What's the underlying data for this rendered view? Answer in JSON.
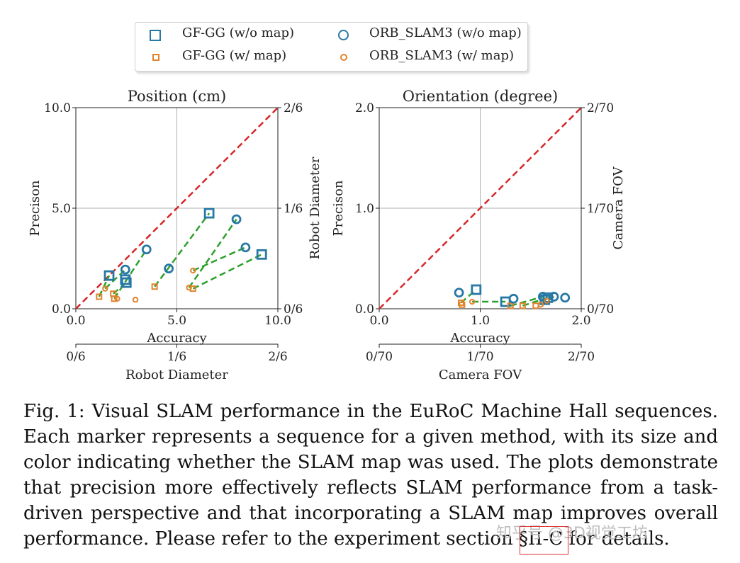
{
  "legend": {
    "items": [
      {
        "label": "GF-GG (w/o map)",
        "marker": "square",
        "size": "large",
        "color": "#2778a5"
      },
      {
        "label": "GF-GG (w/ map)",
        "marker": "square",
        "size": "small",
        "color": "#e1822c"
      },
      {
        "label": "ORB_SLAM3 (w/o map)",
        "marker": "circle",
        "size": "large",
        "color": "#2778a5"
      },
      {
        "label": "ORB_SLAM3 (w/ map)",
        "marker": "circle",
        "size": "small",
        "color": "#e1822c"
      }
    ]
  },
  "colors": {
    "blue": "#2778a5",
    "orange": "#e1822c",
    "green": "#2ca02c",
    "diag": "#d62728"
  },
  "chart_data": [
    {
      "type": "scatter",
      "title": "Position (cm)",
      "xlabel": "Accuracy",
      "ylabel": "Precison",
      "right_ylabel": "Robot Diameter",
      "secondary_xlabel": "Robot Diameter",
      "xlim": [
        0,
        10
      ],
      "ylim": [
        0,
        10
      ],
      "x_ticks": [
        "0.0",
        "5.0",
        "10.0"
      ],
      "y_ticks": [
        "0.0",
        "5.0",
        "10.0"
      ],
      "right_ticks": [
        "0/6",
        "1/6",
        "2/6"
      ],
      "secondary_x_ticks": [
        "0/6",
        "1/6",
        "2/6"
      ],
      "diagonal": true,
      "series": [
        {
          "name": "GF-GG (w/o map)",
          "points": [
            [
              1.65,
              1.65
            ],
            [
              2.5,
              1.3
            ],
            [
              2.45,
              1.45
            ],
            [
              6.6,
              4.75
            ],
            [
              9.2,
              2.7
            ]
          ]
        },
        {
          "name": "GF-GG (w/ map)",
          "points": [
            [
              1.15,
              0.6
            ],
            [
              1.85,
              0.75
            ],
            [
              1.9,
              0.5
            ],
            [
              3.9,
              1.1
            ],
            [
              5.8,
              1.0
            ]
          ]
        },
        {
          "name": "ORB_SLAM3 (w/o map)",
          "points": [
            [
              2.45,
              1.95
            ],
            [
              3.5,
              2.95
            ],
            [
              4.6,
              2.0
            ],
            [
              7.95,
              4.45
            ],
            [
              8.4,
              3.05
            ]
          ]
        },
        {
          "name": "ORB_SLAM3 (w/ map)",
          "points": [
            [
              1.45,
              1.0
            ],
            [
              2.05,
              0.5
            ],
            [
              2.95,
              0.45
            ],
            [
              5.6,
              1.05
            ],
            [
              5.8,
              1.9
            ]
          ]
        }
      ],
      "pairs": [
        [
          [
            1.15,
            0.6
          ],
          [
            1.65,
            1.65
          ]
        ],
        [
          [
            1.85,
            0.75
          ],
          [
            2.5,
            1.3
          ]
        ],
        [
          [
            1.9,
            0.5
          ],
          [
            3.5,
            2.95
          ]
        ],
        [
          [
            3.9,
            1.1
          ],
          [
            6.6,
            4.75
          ]
        ],
        [
          [
            5.6,
            1.05
          ],
          [
            7.95,
            4.45
          ]
        ],
        [
          [
            5.8,
            1.9
          ],
          [
            8.4,
            3.05
          ]
        ],
        [
          [
            5.8,
            1.0
          ],
          [
            9.2,
            2.7
          ]
        ],
        [
          [
            1.45,
            1.0
          ],
          [
            2.45,
            1.95
          ]
        ]
      ]
    },
    {
      "type": "scatter",
      "title": "Orientation (degree)",
      "xlabel": "Accuracy",
      "ylabel": "Precison",
      "right_ylabel": "Camera FOV",
      "secondary_xlabel": "Camera FOV",
      "xlim": [
        0,
        2
      ],
      "ylim": [
        0,
        2
      ],
      "x_ticks": [
        "0.0",
        "1.0",
        "2.0"
      ],
      "y_ticks": [
        "0.0",
        "1.0",
        "2.0"
      ],
      "right_ticks": [
        "0/70",
        "1/70",
        "2/70"
      ],
      "secondary_x_ticks": [
        "0/70",
        "1/70",
        "2/70"
      ],
      "diagonal": true,
      "series": [
        {
          "name": "GF-GG (w/o map)",
          "points": [
            [
              0.96,
              0.19
            ],
            [
              1.25,
              0.07
            ],
            [
              1.67,
              0.11
            ],
            [
              1.64,
              0.09
            ]
          ]
        },
        {
          "name": "GF-GG (w/ map)",
          "points": [
            [
              0.81,
              0.06
            ],
            [
              0.82,
              0.04
            ],
            [
              1.3,
              0.03
            ],
            [
              1.42,
              0.03
            ],
            [
              1.55,
              0.03
            ]
          ]
        },
        {
          "name": "ORB_SLAM3 (w/o map)",
          "points": [
            [
              0.79,
              0.16
            ],
            [
              1.33,
              0.1
            ],
            [
              1.62,
              0.12
            ],
            [
              1.73,
              0.12
            ],
            [
              1.84,
              0.11
            ]
          ]
        },
        {
          "name": "ORB_SLAM3 (w/ map)",
          "points": [
            [
              0.92,
              0.07
            ],
            [
              1.6,
              0.04
            ],
            [
              1.66,
              0.08
            ]
          ]
        }
      ],
      "pairs": [
        [
          [
            0.81,
            0.06
          ],
          [
            0.96,
            0.19
          ]
        ],
        [
          [
            0.92,
            0.07
          ],
          [
            1.25,
            0.07
          ]
        ],
        [
          [
            1.3,
            0.03
          ],
          [
            1.62,
            0.12
          ]
        ],
        [
          [
            1.42,
            0.03
          ],
          [
            1.67,
            0.11
          ]
        ],
        [
          [
            1.6,
            0.04
          ],
          [
            1.73,
            0.12
          ]
        ]
      ]
    }
  ],
  "caption": "Fig. 1: Visual SLAM performance in the EuRoC Machine Hall sequences. Each marker represents a sequence for a given method, with its size and color indicating whether the SLAM map was used. The plots demonstrate that precision more effectively reflects SLAM performance from a task-driven perspective and that incorporating a SLAM map improves overall performance. Please refer to the experiment section §II-C for details.",
  "watermark": "知乎号 @3D视觉工坊"
}
